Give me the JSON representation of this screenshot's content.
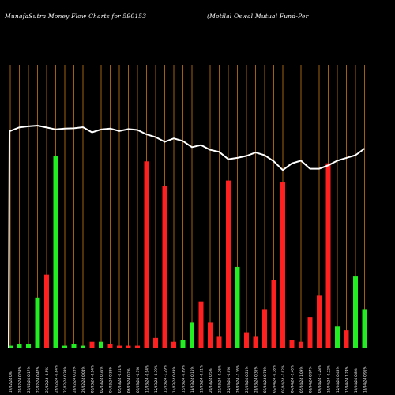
{
  "header": {
    "left_title": "MunafaSutra  Money Flow  Charts for 590153",
    "right_title": "(Motilal Oswal Mutual Fund-Per"
  },
  "colors": {
    "background": "#000000",
    "up": "#22ee22",
    "down": "#ff2020",
    "gridline": "#c87814",
    "price_line": "#ffffff",
    "tick_text": "#ffffff"
  },
  "chart_data": {
    "type": "bar",
    "title": "",
    "xlabel": "",
    "ylabel": "",
    "ylim": [
      0,
      100
    ],
    "grid": true,
    "categories": [
      "19/02/24 0%",
      "20/02/24 0.59%",
      "21/02/24 0.17%",
      "22/02/24 0.42%",
      "23/02/24 -0.5%",
      "26/02/24 -0.84%",
      "27/02/24 0.33%",
      "28/02/24 0.28%",
      "29/02/24 0.04%",
      "01/03/24 -0.94%",
      "02/03/24 0.35%",
      "04/03/24 0.38%",
      "05/03/24 -0.41%",
      "06/03/24 0.2%",
      "07/03/24 -0.1%",
      "11/03/24 -0.94%",
      "12/03/24 -0.79%",
      "13/03/24 -1.29%",
      "14/03/24 0.43%",
      "15/03/24 -0.89%",
      "18/03/24 0.15%",
      "19/03/24 -0.71%",
      "20/03/24 0.5%",
      "21/03/24 -0.26%",
      "22/03/24 -0.6%",
      "26/03/24 -1.36%",
      "27/03/24 0.21%",
      "28/03/24 0.35%",
      "01/04/24 0.74%",
      "02/04/24 -0.38%",
      "03/04/24 -1.02%",
      "04/04/24 -1.46%",
      "05/04/24 1.09%",
      "08/04/24 0.97%",
      "09/04/24 -1.28%",
      "10/04/24 -0.22%",
      "12/04/24 0.48%",
      "15/04/24 1.24%",
      "16/04/24 0.8%",
      "18/04/24 0.91%"
    ],
    "series": [
      {
        "values": [
          1,
          2,
          2,
          26,
          38,
          100,
          1,
          2,
          1,
          3,
          3,
          2,
          1,
          1,
          1,
          97,
          5,
          84,
          3,
          4,
          13,
          24,
          13,
          6,
          87,
          42,
          8,
          6,
          20,
          35,
          86,
          4,
          3,
          16,
          27,
          96,
          11,
          9,
          37,
          20
        ],
        "directions": [
          "up",
          "up",
          "up",
          "up",
          "down",
          "up",
          "up",
          "up",
          "up",
          "down",
          "up",
          "down",
          "down",
          "down",
          "down",
          "down",
          "down",
          "down",
          "down",
          "up",
          "up",
          "down",
          "down",
          "down",
          "down",
          "up",
          "down",
          "down",
          "down",
          "down",
          "down",
          "down",
          "down",
          "down",
          "down",
          "down",
          "up",
          "down",
          "up",
          "up"
        ]
      },
      {
        "values": [
          1.0,
          1.027,
          1.035,
          1.04,
          1.026,
          1.012,
          1.018,
          1.02,
          1.028,
          0.99,
          1.012,
          1.018,
          1.0,
          1.014,
          1.008,
          0.975,
          0.955,
          0.92,
          0.945,
          0.925,
          0.88,
          0.895,
          0.86,
          0.845,
          0.79,
          0.8,
          0.815,
          0.84,
          0.82,
          0.775,
          0.71,
          0.76,
          0.78,
          0.72,
          0.72,
          0.745,
          0.78,
          0.8,
          0.82,
          0.87
        ]
      }
    ]
  }
}
